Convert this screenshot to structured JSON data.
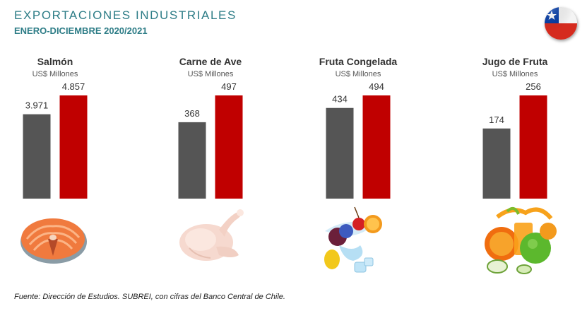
{
  "header": {
    "title": "EXPORTACIONES INDUSTRIALES",
    "subtitle": "ENERO-DICIEMBRE 2020/2021"
  },
  "colors": {
    "title": "#2e7d87",
    "bar_2020": "#555555",
    "bar_2021": "#c00000"
  },
  "icons": {
    "flag": "chile-flag-icon",
    "salmon": "salmon-steak-icon",
    "chicken": "raw-chicken-icon",
    "frozen_fruit": "frozen-fruit-icon",
    "juice": "fruit-juice-icon"
  },
  "chart_data": {
    "type": "bar",
    "layout": "small-multiples",
    "unit": "US$ Millones",
    "series": [
      {
        "name": "",
        "color": "#555555"
      },
      {
        "name": "",
        "color": "#c00000"
      }
    ],
    "panels": [
      {
        "category": "Salmón",
        "unit": "US$ Millones",
        "values": [
          3971,
          4857
        ],
        "labels": [
          "3.971",
          "4.857"
        ]
      },
      {
        "category": "Carne de Ave",
        "unit": "US$ Millones",
        "values": [
          368,
          497
        ],
        "labels": [
          "368",
          "497"
        ]
      },
      {
        "category": "Fruta Congelada",
        "unit": "US$ Millones",
        "values": [
          434,
          494
        ],
        "labels": [
          "434",
          "494"
        ]
      },
      {
        "category": "Jugo de Fruta",
        "unit": "US$ Millones",
        "values": [
          174,
          256
        ],
        "labels": [
          "174",
          "256"
        ]
      }
    ]
  },
  "footer": {
    "source": "Fuente: Dirección de Estudios. SUBREI, con cifras del Banco Central de Chile."
  }
}
